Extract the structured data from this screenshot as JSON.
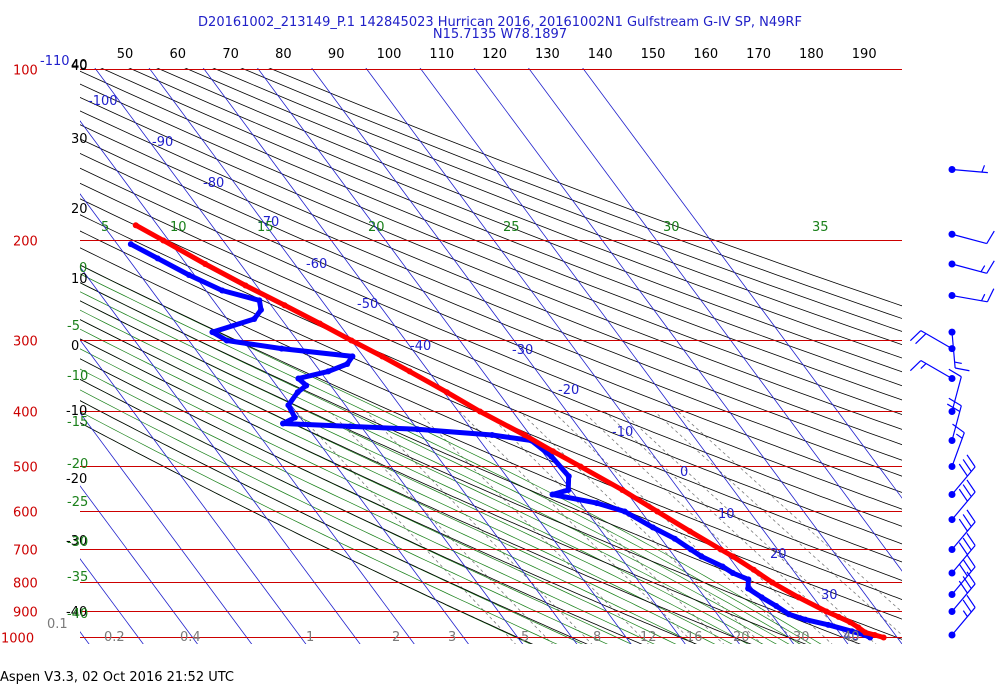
{
  "header": {
    "line1": "D20161002_213149_P.1 142845023 Hurrican 2016, 20161002N1 Gulfstream G-IV SP, N49RF",
    "line2": "N15.7135 W78.1897"
  },
  "footer": "Aspen V3.3, 02 Oct 2016  21:52 UTC",
  "colors": {
    "isobar": "#cc0000",
    "temperature": "#ff0000",
    "dewpoint": "#0000ff",
    "isotherm": "#2020cc",
    "dry_adiabat": "#000000",
    "moist_adiabat": "#1a801a",
    "mixing_ratio": "#7a7a7a"
  },
  "chart_data": {
    "type": "skew-t log-p",
    "pressure_levels_hpa": [
      "100",
      "200",
      "300",
      "400",
      "500",
      "600",
      "700",
      "800",
      "900",
      "1000"
    ],
    "top_axis_labels": [
      "40",
      "50",
      "60",
      "70",
      "80",
      "90",
      "100",
      "110",
      "120",
      "130",
      "140",
      "150",
      "160",
      "170",
      "180",
      "190"
    ],
    "isotherm_labels": [
      "-110",
      "-100",
      "-90",
      "-80",
      "-70",
      "-60",
      "-50",
      "-40",
      "-30",
      "-20",
      "-10",
      "0",
      "10",
      "20",
      "30",
      "40"
    ],
    "theta_left_labels": [
      "40",
      "30",
      "20",
      "10",
      "0",
      "-10",
      "-20",
      "-30",
      "-40"
    ],
    "theta_e_labels": [
      "0",
      "-5",
      "-10",
      "-15",
      "-20",
      "-25",
      "-30",
      "-35",
      "-40"
    ],
    "moist_adiabat_top_labels": [
      "5",
      "10",
      "15",
      "20",
      "25",
      "30",
      "35"
    ],
    "mixing_ratio_labels": [
      "0.1",
      "0.2",
      "0.4",
      "1",
      "2",
      "3",
      "5",
      "8",
      "12",
      "16",
      "20",
      "30",
      "40"
    ],
    "temperature_profile": [
      {
        "p": 1000,
        "t": 27.5
      },
      {
        "p": 990,
        "t": 26.2
      },
      {
        "p": 980,
        "t": 24.8
      },
      {
        "p": 960,
        "t": 24.2
      },
      {
        "p": 940,
        "t": 23.4
      },
      {
        "p": 920,
        "t": 22.0
      },
      {
        "p": 900,
        "t": 20.5
      },
      {
        "p": 850,
        "t": 17.3
      },
      {
        "p": 800,
        "t": 14.5
      },
      {
        "p": 760,
        "t": 12.8
      },
      {
        "p": 720,
        "t": 10.8
      },
      {
        "p": 700,
        "t": 9.5
      },
      {
        "p": 650,
        "t": 6.3
      },
      {
        "p": 600,
        "t": 3.0
      },
      {
        "p": 550,
        "t": -0.5
      },
      {
        "p": 500,
        "t": -5.0
      },
      {
        "p": 470,
        "t": -8.0
      },
      {
        "p": 440,
        "t": -11.0
      },
      {
        "p": 400,
        "t": -16.0
      },
      {
        "p": 370,
        "t": -19.5
      },
      {
        "p": 340,
        "t": -23.5
      },
      {
        "p": 320,
        "t": -26.5
      },
      {
        "p": 300,
        "t": -30.0
      },
      {
        "p": 280,
        "t": -33.5
      },
      {
        "p": 260,
        "t": -37.5
      },
      {
        "p": 240,
        "t": -42.0
      },
      {
        "p": 220,
        "t": -46.5
      },
      {
        "p": 200,
        "t": -51.0
      },
      {
        "p": 188,
        "t": -54.0
      }
    ],
    "dewpoint_profile": [
      {
        "p": 1000,
        "t": 25.0
      },
      {
        "p": 990,
        "t": 24.3
      },
      {
        "p": 975,
        "t": 22.5
      },
      {
        "p": 950,
        "t": 19.0
      },
      {
        "p": 930,
        "t": 15.5
      },
      {
        "p": 910,
        "t": 13.2
      },
      {
        "p": 880,
        "t": 12.0
      },
      {
        "p": 850,
        "t": 10.5
      },
      {
        "p": 820,
        "t": 9.2
      },
      {
        "p": 790,
        "t": 10.5
      },
      {
        "p": 770,
        "t": 8.5
      },
      {
        "p": 750,
        "t": 7.5
      },
      {
        "p": 720,
        "t": 5.0
      },
      {
        "p": 700,
        "t": 4.0
      },
      {
        "p": 670,
        "t": 2.5
      },
      {
        "p": 640,
        "t": 0.0
      },
      {
        "p": 600,
        "t": -3.0
      },
      {
        "p": 580,
        "t": -7.0
      },
      {
        "p": 560,
        "t": -14.0
      },
      {
        "p": 550,
        "t": -10.5
      },
      {
        "p": 520,
        "t": -8.5
      },
      {
        "p": 480,
        "t": -9.0
      },
      {
        "p": 450,
        "t": -10.5
      },
      {
        "p": 440,
        "t": -17.0
      },
      {
        "p": 430,
        "t": -30.0
      },
      {
        "p": 425,
        "t": -42.0
      },
      {
        "p": 420,
        "t": -54.0
      },
      {
        "p": 410,
        "t": -51.0
      },
      {
        "p": 390,
        "t": -50.5
      },
      {
        "p": 370,
        "t": -47.0
      },
      {
        "p": 360,
        "t": -44.5
      },
      {
        "p": 350,
        "t": -45.0
      },
      {
        "p": 340,
        "t": -38.5
      },
      {
        "p": 330,
        "t": -34.0
      },
      {
        "p": 320,
        "t": -32.0
      },
      {
        "p": 310,
        "t": -44.0
      },
      {
        "p": 300,
        "t": -53.0
      },
      {
        "p": 290,
        "t": -54.5
      },
      {
        "p": 275,
        "t": -45.0
      },
      {
        "p": 265,
        "t": -42.5
      },
      {
        "p": 255,
        "t": -41.5
      },
      {
        "p": 245,
        "t": -47.0
      },
      {
        "p": 230,
        "t": -51.0
      },
      {
        "p": 215,
        "t": -54.5
      },
      {
        "p": 203,
        "t": -57.5
      }
    ],
    "wind_barbs": [
      {
        "p": 150,
        "speed_kt": 5,
        "dir_deg": 95
      },
      {
        "p": 195,
        "speed_kt": 10,
        "dir_deg": 105
      },
      {
        "p": 220,
        "speed_kt": 15,
        "dir_deg": 105
      },
      {
        "p": 250,
        "speed_kt": 15,
        "dir_deg": 100
      },
      {
        "p": 290,
        "speed_kt": 15,
        "dir_deg": 175
      },
      {
        "p": 310,
        "speed_kt": 20,
        "dir_deg": 300
      },
      {
        "p": 350,
        "speed_kt": 15,
        "dir_deg": 300
      },
      {
        "p": 400,
        "speed_kt": 10,
        "dir_deg": 15
      },
      {
        "p": 450,
        "speed_kt": 20,
        "dir_deg": 15
      },
      {
        "p": 500,
        "speed_kt": 15,
        "dir_deg": 20
      },
      {
        "p": 560,
        "speed_kt": 30,
        "dir_deg": 40
      },
      {
        "p": 620,
        "speed_kt": 30,
        "dir_deg": 40
      },
      {
        "p": 700,
        "speed_kt": 30,
        "dir_deg": 40
      },
      {
        "p": 770,
        "speed_kt": 30,
        "dir_deg": 40
      },
      {
        "p": 840,
        "speed_kt": 30,
        "dir_deg": 40
      },
      {
        "p": 900,
        "speed_kt": 30,
        "dir_deg": 40
      },
      {
        "p": 990,
        "speed_kt": 25,
        "dir_deg": 40
      }
    ]
  }
}
